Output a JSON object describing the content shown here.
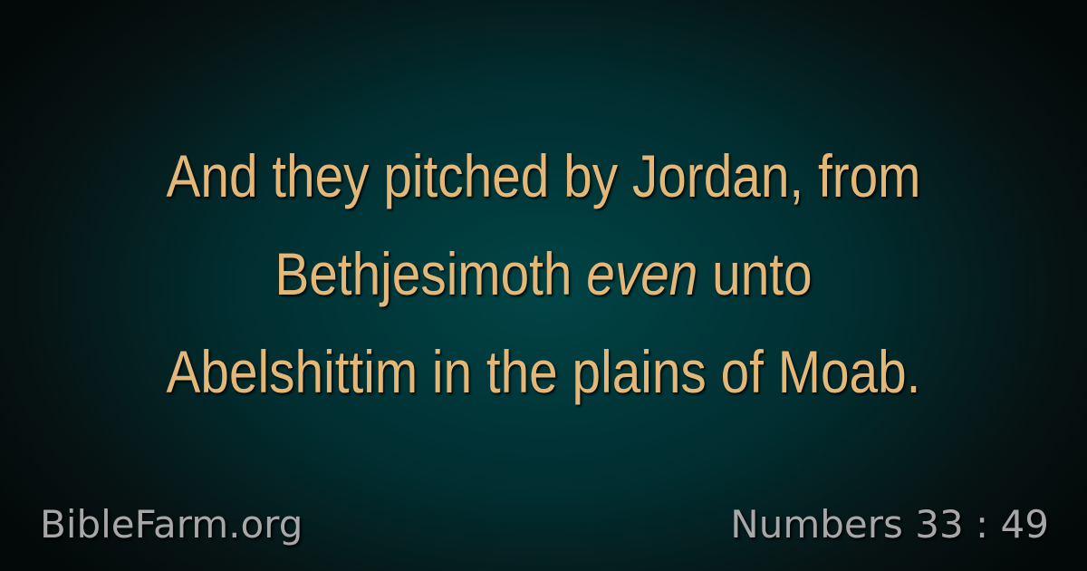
{
  "verse": {
    "line1": "And they pitched by Jordan, from",
    "line2_start": "Bethjesimoth ",
    "line2_emphasis": "even",
    "line2_end": " unto",
    "line3": "Abelshittim in the plains of Moab."
  },
  "footer": {
    "site": "BibleFarm.org",
    "reference": "Numbers 33 : 49"
  },
  "colors": {
    "verse_text": "#e3b777",
    "footer_text": "#a7a7a7",
    "background_center": "#014446",
    "background_edge": "#030808"
  }
}
